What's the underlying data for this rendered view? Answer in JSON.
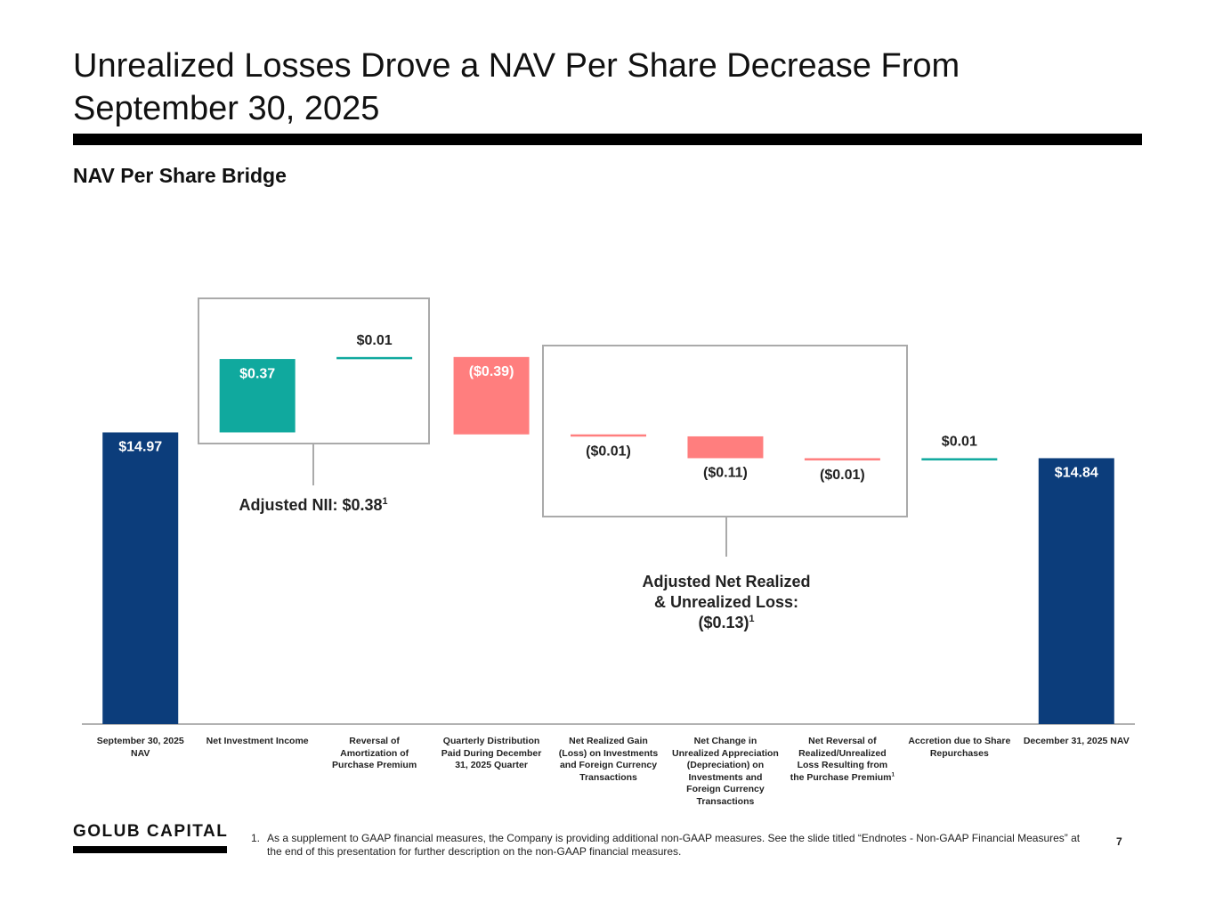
{
  "chart_data": {
    "type": "waterfall",
    "title": "Unrealized Losses Drove a NAV Per Share Decrease From September 30, 2025",
    "subtitle": "NAV Per Share Bridge",
    "categories": [
      "September 30, 2025 NAV",
      "Net Investment Income",
      "Reversal of Amortization of Purchase Premium",
      "Quarterly Distribution Paid During December 31, 2025 Quarter",
      "Net Realized Gain (Loss) on Investments and Foreign Currency Transactions",
      "Net Change in Unrealized Appreciation (Depreciation) on Investments and Foreign Currency Transactions",
      "Net Reversal of Realized/Unrealized Loss Resulting from the Purchase Premium",
      "Accretion due to Share Repurchases",
      "December 31, 2025 NAV"
    ],
    "category_superscripts": [
      null,
      null,
      null,
      null,
      null,
      null,
      "1",
      null,
      null
    ],
    "values": [
      14.97,
      0.37,
      0.01,
      -0.39,
      -0.01,
      -0.11,
      -0.01,
      0.01,
      14.84
    ],
    "value_labels": [
      "$14.97",
      "$0.37",
      "$0.01",
      "($0.39)",
      "($0.01)",
      "($0.11)",
      "($0.01)",
      "$0.01",
      "$14.84"
    ],
    "bar_kinds": [
      "total",
      "delta",
      "delta",
      "delta",
      "delta",
      "delta",
      "delta",
      "delta",
      "total"
    ],
    "total_color": "#0c3d7b",
    "increase_color": "#10a99e",
    "decrease_color": "#ff7e7e",
    "ylim": [
      13.5,
      15.65
    ],
    "annotations": [
      {
        "lines": [
          "Adjusted NII: $0.38"
        ],
        "sup": "1"
      },
      {
        "lines": [
          "Adjusted Net Realized",
          "& Unrealized Loss:",
          "($0.13)"
        ],
        "sup": "1"
      }
    ]
  },
  "footer": {
    "logo": "GOLUB CAPITAL",
    "footnote_number": "1.",
    "footnote": "As a supplement to GAAP financial measures, the Company is providing additional non-GAAP measures. See the slide titled “Endnotes - Non-GAAP Financial Measures” at the end of this presentation for further description on the non-GAAP financial measures.",
    "page": "7"
  }
}
